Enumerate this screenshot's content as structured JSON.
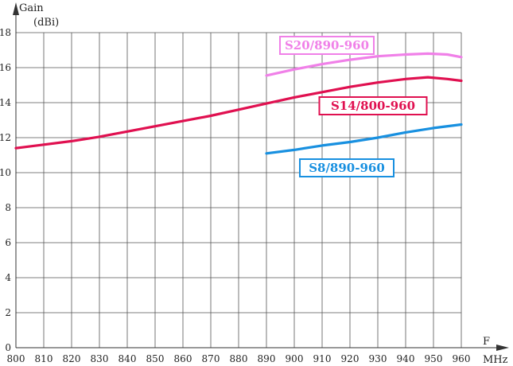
{
  "chart_data": {
    "type": "line",
    "title": "",
    "ylabel_line1": "Gain",
    "ylabel_line2": "(dBi)",
    "xlabel_line1": "F",
    "xlabel_line2": "MHz",
    "xlim": [
      800,
      960
    ],
    "ylim": [
      0,
      18
    ],
    "xticks": [
      800,
      810,
      820,
      830,
      840,
      850,
      860,
      870,
      880,
      890,
      900,
      910,
      920,
      930,
      940,
      950,
      960
    ],
    "yticks": [
      0,
      2,
      4,
      6,
      8,
      10,
      12,
      14,
      16,
      18
    ],
    "grid": true,
    "legend": "inline-labels",
    "series": [
      {
        "name": "S20/890-960",
        "color": "#f080e8",
        "x": [
          890,
          900,
          910,
          920,
          930,
          940,
          948,
          955,
          960
        ],
        "y": [
          15.55,
          15.9,
          16.2,
          16.45,
          16.65,
          16.75,
          16.8,
          16.75,
          16.6
        ]
      },
      {
        "name": "S14/800-960",
        "color": "#e01050",
        "x": [
          800,
          810,
          820,
          830,
          840,
          850,
          860,
          870,
          880,
          890,
          900,
          910,
          920,
          930,
          940,
          948,
          955,
          960
        ],
        "y": [
          11.4,
          11.6,
          11.8,
          12.05,
          12.35,
          12.65,
          12.95,
          13.25,
          13.6,
          13.95,
          14.3,
          14.6,
          14.9,
          15.15,
          15.35,
          15.45,
          15.35,
          15.25
        ]
      },
      {
        "name": "S8/890-960",
        "color": "#1890e0",
        "x": [
          890,
          900,
          910,
          920,
          930,
          940,
          950,
          960
        ],
        "y": [
          11.1,
          11.3,
          11.55,
          11.75,
          12.0,
          12.3,
          12.55,
          12.75
        ]
      }
    ]
  }
}
